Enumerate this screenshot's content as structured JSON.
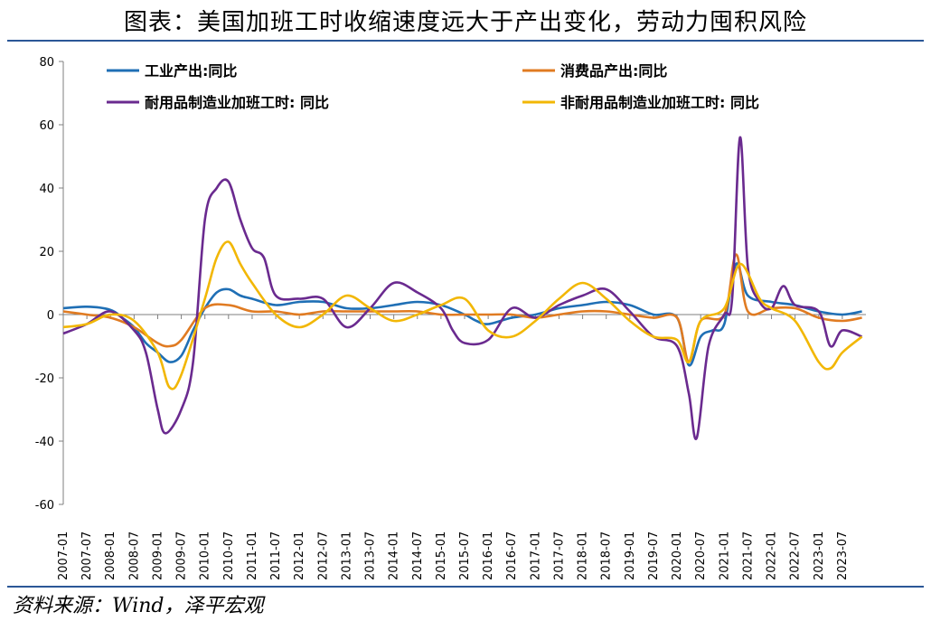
{
  "header": {
    "title": "图表：美国加班工时收缩速度远大于产出变化，劳动力囤积风险"
  },
  "footer": {
    "source": "资料来源：Wind，泽平宏观"
  },
  "chart_data": {
    "type": "line",
    "title": "图表：美国加班工时收缩速度远大于产出变化，劳动力囤积风险",
    "xlabel": "",
    "ylabel": "",
    "ylim": [
      -60,
      80
    ],
    "yticks": [
      -60,
      -40,
      -20,
      0,
      20,
      40,
      60,
      80
    ],
    "grid": false,
    "legend": "top",
    "xtick_labels": [
      "2007-01",
      "2007-07",
      "2008-01",
      "2008-07",
      "2009-01",
      "2009-07",
      "2010-01",
      "2010-07",
      "2011-01",
      "2011-07",
      "2012-01",
      "2012-07",
      "2013-01",
      "2013-07",
      "2014-01",
      "2014-07",
      "2015-01",
      "2015-07",
      "2016-01",
      "2016-07",
      "2017-01",
      "2017-07",
      "2018-01",
      "2018-07",
      "2019-01",
      "2019-07",
      "2020-01",
      "2020-07",
      "2021-01",
      "2021-07",
      "2022-01",
      "2022-07",
      "2023-01",
      "2023-07"
    ],
    "series": [
      {
        "name": "工业产出:同比",
        "color": "#1f6fb5",
        "points": [
          [
            "2007-01",
            2
          ],
          [
            "2007-07",
            2.5
          ],
          [
            "2008-01",
            1.5
          ],
          [
            "2008-04",
            -1
          ],
          [
            "2008-07",
            -4
          ],
          [
            "2008-10",
            -9
          ],
          [
            "2009-01",
            -12
          ],
          [
            "2009-04",
            -15
          ],
          [
            "2009-07",
            -13
          ],
          [
            "2009-10",
            -5
          ],
          [
            "2010-01",
            2
          ],
          [
            "2010-04",
            7
          ],
          [
            "2010-07",
            8
          ],
          [
            "2010-10",
            6
          ],
          [
            "2011-01",
            5
          ],
          [
            "2011-07",
            3
          ],
          [
            "2012-01",
            4
          ],
          [
            "2012-07",
            4
          ],
          [
            "2013-01",
            2
          ],
          [
            "2013-07",
            2
          ],
          [
            "2014-01",
            3
          ],
          [
            "2014-07",
            4
          ],
          [
            "2015-01",
            3
          ],
          [
            "2015-07",
            0
          ],
          [
            "2015-10",
            -2
          ],
          [
            "2016-01",
            -3
          ],
          [
            "2016-07",
            -1
          ],
          [
            "2017-01",
            0
          ],
          [
            "2017-07",
            2
          ],
          [
            "2018-01",
            3
          ],
          [
            "2018-07",
            4
          ],
          [
            "2019-01",
            3
          ],
          [
            "2019-07",
            0
          ],
          [
            "2020-01",
            -1
          ],
          [
            "2020-04",
            -16
          ],
          [
            "2020-07",
            -7
          ],
          [
            "2020-10",
            -5
          ],
          [
            "2021-01",
            -3
          ],
          [
            "2021-04",
            16
          ],
          [
            "2021-07",
            6
          ],
          [
            "2022-01",
            4
          ],
          [
            "2022-07",
            3
          ],
          [
            "2023-01",
            1
          ],
          [
            "2023-07",
            0
          ],
          [
            "2023-12",
            1
          ]
        ]
      },
      {
        "name": "消费品产出:同比",
        "color": "#e07b22",
        "points": [
          [
            "2007-01",
            1
          ],
          [
            "2007-07",
            0
          ],
          [
            "2008-01",
            -1
          ],
          [
            "2008-07",
            -4
          ],
          [
            "2009-01",
            -9
          ],
          [
            "2009-04",
            -10
          ],
          [
            "2009-07",
            -8
          ],
          [
            "2010-01",
            2
          ],
          [
            "2010-07",
            3
          ],
          [
            "2011-01",
            1
          ],
          [
            "2011-07",
            1
          ],
          [
            "2012-01",
            0
          ],
          [
            "2012-07",
            1
          ],
          [
            "2013-01",
            1
          ],
          [
            "2013-07",
            1
          ],
          [
            "2014-01",
            1
          ],
          [
            "2014-07",
            1
          ],
          [
            "2015-01",
            0
          ],
          [
            "2015-07",
            0
          ],
          [
            "2016-01",
            0
          ],
          [
            "2016-07",
            0
          ],
          [
            "2017-01",
            -1
          ],
          [
            "2017-07",
            0
          ],
          [
            "2018-01",
            1
          ],
          [
            "2018-07",
            1
          ],
          [
            "2019-01",
            0
          ],
          [
            "2019-07",
            -1
          ],
          [
            "2020-01",
            -1
          ],
          [
            "2020-04",
            -15
          ],
          [
            "2020-07",
            -2
          ],
          [
            "2021-01",
            0
          ],
          [
            "2021-04",
            19
          ],
          [
            "2021-07",
            1
          ],
          [
            "2022-01",
            2
          ],
          [
            "2022-07",
            2
          ],
          [
            "2023-01",
            -1
          ],
          [
            "2023-07",
            -2
          ],
          [
            "2023-12",
            -1
          ]
        ]
      },
      {
        "name": "耐用品制造业加班工时: 同比",
        "color": "#6a2a8f",
        "points": [
          [
            "2007-01",
            -6
          ],
          [
            "2007-07",
            -3
          ],
          [
            "2008-01",
            1
          ],
          [
            "2008-07",
            -5
          ],
          [
            "2008-10",
            -12
          ],
          [
            "2009-01",
            -30
          ],
          [
            "2009-03",
            -37.5
          ],
          [
            "2009-07",
            -30
          ],
          [
            "2009-10",
            -15
          ],
          [
            "2010-01",
            30
          ],
          [
            "2010-04",
            40
          ],
          [
            "2010-07",
            42
          ],
          [
            "2010-10",
            30
          ],
          [
            "2011-01",
            21
          ],
          [
            "2011-04",
            18
          ],
          [
            "2011-07",
            6
          ],
          [
            "2012-01",
            5
          ],
          [
            "2012-07",
            5
          ],
          [
            "2013-01",
            -4
          ],
          [
            "2013-07",
            2
          ],
          [
            "2014-01",
            10
          ],
          [
            "2014-07",
            7
          ],
          [
            "2015-01",
            2
          ],
          [
            "2015-04",
            -5
          ],
          [
            "2015-07",
            -9
          ],
          [
            "2016-01",
            -8
          ],
          [
            "2016-07",
            2
          ],
          [
            "2017-01",
            -1
          ],
          [
            "2017-07",
            3
          ],
          [
            "2018-01",
            6
          ],
          [
            "2018-07",
            8
          ],
          [
            "2019-01",
            1
          ],
          [
            "2019-07",
            -7
          ],
          [
            "2020-01",
            -10
          ],
          [
            "2020-04",
            -25
          ],
          [
            "2020-06",
            -39
          ],
          [
            "2020-09",
            -10
          ],
          [
            "2021-01",
            0
          ],
          [
            "2021-03",
            5
          ],
          [
            "2021-05",
            56
          ],
          [
            "2021-07",
            15
          ],
          [
            "2021-10",
            4
          ],
          [
            "2022-01",
            2
          ],
          [
            "2022-04",
            9
          ],
          [
            "2022-07",
            3
          ],
          [
            "2023-01",
            1
          ],
          [
            "2023-04",
            -10
          ],
          [
            "2023-07",
            -5
          ],
          [
            "2023-12",
            -7
          ]
        ]
      },
      {
        "name": "非耐用品制造业加班工时: 同比",
        "color": "#f2b705",
        "points": [
          [
            "2007-01",
            -4
          ],
          [
            "2007-07",
            -3
          ],
          [
            "2008-01",
            0
          ],
          [
            "2008-07",
            -2
          ],
          [
            "2009-01",
            -12
          ],
          [
            "2009-04",
            -23
          ],
          [
            "2009-07",
            -19
          ],
          [
            "2010-01",
            5
          ],
          [
            "2010-04",
            18
          ],
          [
            "2010-07",
            23
          ],
          [
            "2010-10",
            16
          ],
          [
            "2011-01",
            10
          ],
          [
            "2011-07",
            0
          ],
          [
            "2012-01",
            -4
          ],
          [
            "2012-07",
            0
          ],
          [
            "2013-01",
            6
          ],
          [
            "2013-07",
            2
          ],
          [
            "2014-01",
            -2
          ],
          [
            "2014-07",
            0
          ],
          [
            "2015-01",
            3
          ],
          [
            "2015-07",
            5
          ],
          [
            "2016-01",
            -5
          ],
          [
            "2016-07",
            -7
          ],
          [
            "2017-01",
            -2
          ],
          [
            "2017-07",
            5
          ],
          [
            "2018-01",
            10
          ],
          [
            "2018-07",
            5
          ],
          [
            "2019-01",
            -2
          ],
          [
            "2019-07",
            -7
          ],
          [
            "2020-01",
            -8
          ],
          [
            "2020-04",
            -15
          ],
          [
            "2020-07",
            -2
          ],
          [
            "2021-01",
            2
          ],
          [
            "2021-05",
            16
          ],
          [
            "2021-10",
            5
          ],
          [
            "2022-01",
            2
          ],
          [
            "2022-07",
            -2
          ],
          [
            "2023-01",
            -15
          ],
          [
            "2023-04",
            -17
          ],
          [
            "2023-07",
            -12
          ],
          [
            "2023-12",
            -7
          ]
        ]
      }
    ]
  }
}
